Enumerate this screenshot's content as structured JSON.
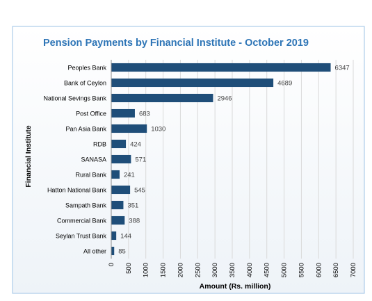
{
  "chart_data": {
    "type": "bar",
    "orientation": "horizontal",
    "title": "Pension Payments by Financial  Institute - October 2019",
    "xlabel": "Amount (Rs. million)",
    "ylabel": "Financial  Institute",
    "categories": [
      "Peoples Bank",
      "Bank of Ceylon",
      "National Sevings Bank",
      "Post Office",
      "Pan Asia Bank",
      "RDB",
      "SANASA",
      "Rural Bank",
      "Hatton National Bank",
      "Sampath Bank",
      "Commercial Bank",
      "Seylan Trust Bank",
      "All other"
    ],
    "values": [
      6347,
      4689,
      2946,
      683,
      1030,
      424,
      571,
      241,
      545,
      351,
      388,
      144,
      85
    ],
    "xlim": [
      0,
      7000
    ],
    "xticks": [
      0,
      500,
      1000,
      1500,
      2000,
      2500,
      3000,
      3500,
      4000,
      4500,
      5000,
      5500,
      6000,
      6500,
      7000
    ],
    "grid": true,
    "legend": "none",
    "data_labels": true,
    "colors": {
      "bar": "#1f4e79",
      "title": "#2e75b6",
      "border": "#9dc3e6",
      "grid": "#d9d9d9"
    }
  }
}
